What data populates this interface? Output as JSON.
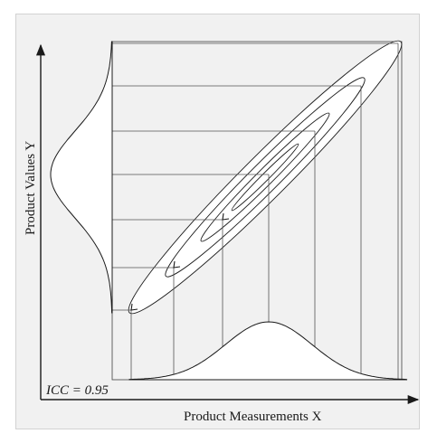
{
  "axes": {
    "x_label": "Product Measurements X",
    "y_label": "Product Values Y"
  },
  "annotation": {
    "text": "ICC = 0.95"
  },
  "colors": {
    "background": "#f1f1f1",
    "line": "#1a1a1a",
    "curve_fill": "#ffffff"
  }
}
